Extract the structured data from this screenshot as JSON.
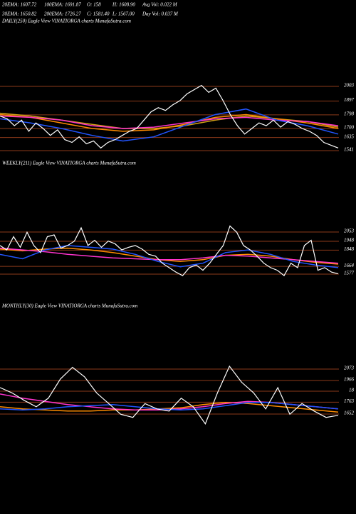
{
  "header": {
    "rows": [
      [
        "20EMA: 1607.72",
        "100EMA: 1691.87",
        "O: 158",
        "H: 1608.90",
        "Avg Vol: 0.022 M"
      ],
      [
        "30EMA: 1650.82",
        "200EMA: 1726.27",
        "C: 1581.40",
        "L: 1567.00",
        "Day Vol: 0.037 M"
      ]
    ]
  },
  "chart_data": [
    {
      "type": "line",
      "title": "DAILY(250) Eagle View VINATIORGA charts MunafaSutra.com",
      "ylim": [
        1469,
        2470
      ],
      "yticks": [
        2003,
        1897,
        1798,
        1700,
        1635,
        1541
      ],
      "grid": true,
      "series": [
        {
          "color": "#d4a017",
          "values": [
            1810,
            1790,
            1760,
            1730,
            1700,
            1700,
            1720,
            1760,
            1790,
            1770,
            1750,
            1710
          ]
        },
        {
          "color": "#ff8c00",
          "values": [
            1800,
            1780,
            1740,
            1700,
            1680,
            1690,
            1730,
            1780,
            1800,
            1770,
            1740,
            1700
          ]
        },
        {
          "color": "#ff33cc",
          "values": [
            1790,
            1780,
            1760,
            1720,
            1700,
            1710,
            1740,
            1770,
            1780,
            1760,
            1750,
            1720
          ]
        },
        {
          "color": "#2255ff",
          "values": [
            1770,
            1740,
            1700,
            1650,
            1610,
            1640,
            1720,
            1800,
            1840,
            1760,
            1720,
            1660
          ]
        },
        {
          "color": "#ffffff",
          "values": [
            1790,
            1770,
            1720,
            1760,
            1680,
            1740,
            1700,
            1650,
            1690,
            1620,
            1600,
            1640,
            1590,
            1610,
            1560,
            1600,
            1620,
            1650,
            1680,
            1700,
            1760,
            1820,
            1850,
            1830,
            1870,
            1900,
            1950,
            1980,
            2010,
            1960,
            1990,
            1900,
            1800,
            1720,
            1660,
            1700,
            1740,
            1720,
            1760,
            1710,
            1750,
            1730,
            1700,
            1680,
            1650,
            1600,
            1580,
            1560
          ]
        }
      ]
    },
    {
      "type": "line",
      "title": "WEEKLY(211) Eagle View VINATIORGA charts MunafaSutra.com",
      "ylim": [
        1488,
        2738
      ],
      "yticks": [
        2053,
        1948,
        1848,
        1664,
        1577
      ],
      "grid": true,
      "series": [
        {
          "color": "#ff8c00",
          "values": [
            1860,
            1840,
            1860,
            1870,
            1850,
            1820,
            1780,
            1740,
            1720,
            1740,
            1790,
            1800,
            1780,
            1740,
            1710,
            1690
          ]
        },
        {
          "color": "#ff33cc",
          "values": [
            1870,
            1850,
            1830,
            1800,
            1780,
            1760,
            1750,
            1740,
            1740,
            1760,
            1790,
            1780,
            1760,
            1740,
            1720,
            1700
          ]
        },
        {
          "color": "#2255ff",
          "values": [
            1800,
            1750,
            1850,
            1900,
            1880,
            1860,
            1800,
            1720,
            1660,
            1700,
            1820,
            1850,
            1800,
            1720,
            1680,
            1650
          ]
        },
        {
          "color": "#ffffff",
          "values": [
            1900,
            1850,
            2000,
            1880,
            2050,
            1900,
            1820,
            2000,
            2020,
            1870,
            1900,
            1950,
            2100,
            1900,
            1960,
            1880,
            1950,
            1920,
            1850,
            1880,
            1900,
            1860,
            1800,
            1780,
            1700,
            1650,
            1600,
            1560,
            1650,
            1680,
            1620,
            1700,
            1800,
            1900,
            2120,
            2050,
            1900,
            1850,
            1780,
            1700,
            1650,
            1620,
            1560,
            1700,
            1650,
            1900,
            1960,
            1620,
            1650,
            1600,
            1580
          ]
        }
      ]
    },
    {
      "type": "line",
      "title": "MONTHLY(30) Eagle View VINATIORGA charts MunafaSutra.com",
      "ylim": [
        1518,
        2588
      ],
      "yticks": [
        2073,
        1966,
        {
          "value": 1866,
          "label": "18"
        },
        1763,
        1652
      ],
      "grid": true,
      "series": [
        {
          "color": "#ff8c00",
          "values": [
            1720,
            1700,
            1690,
            1680,
            1680,
            1690,
            1690,
            1700,
            1710,
            1740,
            1760,
            1750,
            1730,
            1710,
            1690,
            1670
          ]
        },
        {
          "color": "#ff33cc",
          "values": [
            1840,
            1800,
            1770,
            1740,
            1720,
            1700,
            1690,
            1690,
            1700,
            1720,
            1750,
            1770,
            1760,
            1740,
            1720,
            1700
          ]
        },
        {
          "color": "#2255ff",
          "values": [
            1700,
            1690,
            1700,
            1720,
            1730,
            1740,
            1720,
            1700,
            1690,
            1700,
            1730,
            1760,
            1760,
            1740,
            1720,
            1700
          ]
        },
        {
          "color": "#ffffff",
          "values": [
            1900,
            1850,
            1780,
            1720,
            1800,
            1980,
            2090,
            2000,
            1850,
            1750,
            1650,
            1620,
            1750,
            1700,
            1680,
            1800,
            1720,
            1560,
            1850,
            2100,
            1950,
            1850,
            1700,
            1900,
            1650,
            1750,
            1680,
            1620,
            1640
          ]
        }
      ]
    }
  ]
}
